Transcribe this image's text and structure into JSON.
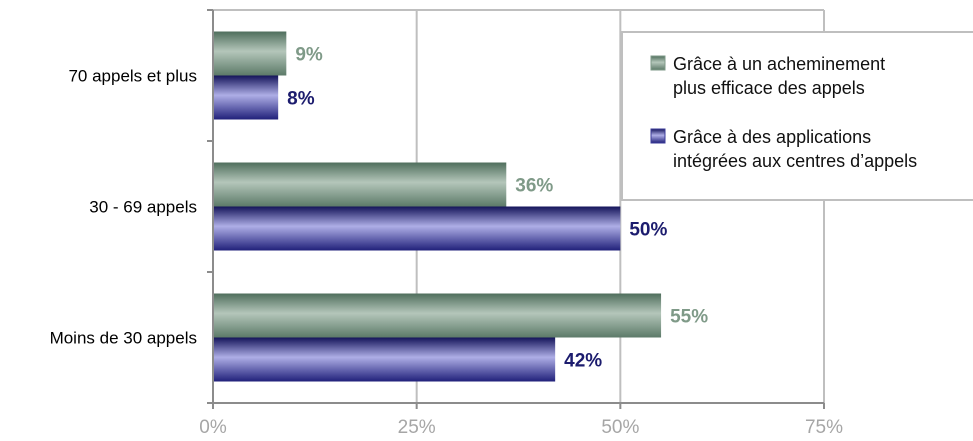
{
  "chart_data": {
    "type": "bar",
    "orientation": "horizontal",
    "categories": [
      "70 appels et plus",
      "30 - 69 appels",
      "Moins de 30 appels"
    ],
    "series": [
      {
        "name_lines": [
          "Grâce à un acheminement",
          "plus efficace des appels"
        ],
        "values": [
          9,
          36,
          55
        ],
        "labels": [
          "9%",
          "36%",
          "55%"
        ],
        "color": "#7f9a88",
        "label_color": "#7f9a88"
      },
      {
        "name_lines": [
          "Grâce à des applications",
          "intégrées aux centres d’appels"
        ],
        "values": [
          8,
          50,
          42
        ],
        "labels": [
          "8%",
          "50%",
          "42%"
        ],
        "color": "#3b3b9a",
        "label_color": "#1c1c6e"
      }
    ],
    "xlim": [
      0,
      75
    ],
    "xticks": [
      0,
      25,
      50,
      75
    ],
    "xtick_labels": [
      "0%",
      "25%",
      "50%",
      "75%"
    ],
    "grid": true,
    "legend_position": "top-right"
  }
}
